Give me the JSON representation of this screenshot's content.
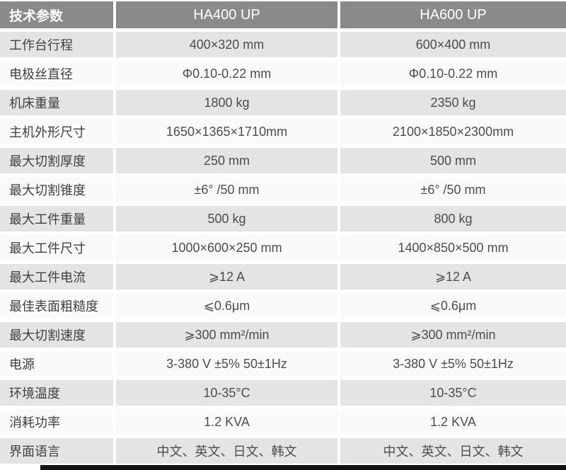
{
  "colors": {
    "header_bg": "#8a8a8a",
    "header_text": "#ffffff",
    "row_alt_bg": "#e4e4e4",
    "row_base_bg": "#fafafa",
    "label_text": "#3f3f3f",
    "value_text": "#4d4d4d",
    "accent_bar": "#121212",
    "gutter": "#ffffff"
  },
  "table": {
    "header": {
      "param_label": "技术参数",
      "model_1": "HA400 UP",
      "model_2": "HA600 UP"
    },
    "rows": [
      {
        "label": "工作台行程",
        "ha400": "400×320 mm",
        "ha600": "600×400 mm"
      },
      {
        "label": "电极丝直径",
        "ha400": "Φ0.10-0.22 mm",
        "ha600": "Φ0.10-0.22 mm"
      },
      {
        "label": "机床重量",
        "ha400": "1800 kg",
        "ha600": "2350 kg"
      },
      {
        "label": "主机外形尺寸",
        "ha400": "1650×1365×1710mm",
        "ha600": "2100×1850×2300mm"
      },
      {
        "label": "最大切割厚度",
        "ha400": "250 mm",
        "ha600": "500 mm"
      },
      {
        "label": "最大切割锥度",
        "ha400": "±6° /50 mm",
        "ha600": "±6° /50 mm"
      },
      {
        "label": "最大工件重量",
        "ha400": "500 kg",
        "ha600": "800 kg"
      },
      {
        "label": "最大工件尺寸",
        "ha400": "1000×600×250 mm",
        "ha600": "1400×850×500 mm"
      },
      {
        "label": "最大工件电流",
        "ha400": "⩾12 A",
        "ha600": "⩾12 A"
      },
      {
        "label": "最佳表面粗糙度",
        "ha400": "⩽0.6μm",
        "ha600": "⩽0.6μm"
      },
      {
        "label": "最大切割速度",
        "ha400": "⩾300 mm²/min",
        "ha600": "⩾300 mm²/min"
      },
      {
        "label": "电源",
        "ha400": "3-380 V ±5% 50±1Hz",
        "ha600": "3-380 V ±5% 50±1Hz"
      },
      {
        "label": "环境温度",
        "ha400": "10-35°C",
        "ha600": "10-35°C"
      },
      {
        "label": "消耗功率",
        "ha400": "1.2 KVA",
        "ha600": "1.2 KVA"
      },
      {
        "label": "界面语言",
        "ha400": "中文、英文、日文、韩文",
        "ha600": "中文、英文、日文、韩文"
      }
    ]
  }
}
